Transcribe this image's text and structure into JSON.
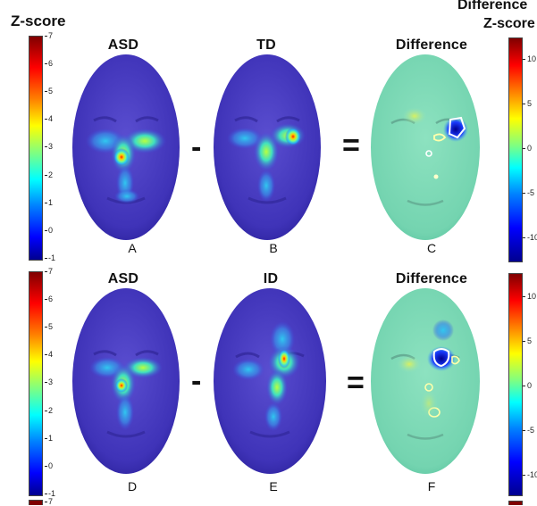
{
  "header": {
    "left_colorbar_title": "Z-score",
    "right_colorbar_title_line1": "Difference",
    "right_colorbar_title_line2": "Z-score"
  },
  "rows": [
    {
      "group1": "ASD",
      "group2": "TD",
      "result": "Difference",
      "labels": [
        "A",
        "B",
        "C"
      ],
      "minus": "-",
      "equals": "="
    },
    {
      "group1": "ASD",
      "group2": "ID",
      "result": "Difference",
      "labels": [
        "D",
        "E",
        "F"
      ],
      "minus": "-",
      "equals": "="
    }
  ],
  "colorbars": {
    "zscore_ticks": [
      "7",
      "6",
      "5",
      "4",
      "3",
      "2",
      "1",
      "0",
      "-1"
    ],
    "difference_ticks": [
      "10",
      "5",
      "0",
      "-5",
      "-10"
    ],
    "zscore_top_partial": "7"
  },
  "colors": {
    "jet_dark_blue": "#00008f",
    "jet_blue": "#0000ff",
    "jet_cyan": "#00ffff",
    "jet_yellow": "#ffff00",
    "jet_red": "#ff0000",
    "jet_dark_red": "#800000",
    "heatmap_background": "#4a3fc4",
    "difference_background": "#79d8b3"
  }
}
